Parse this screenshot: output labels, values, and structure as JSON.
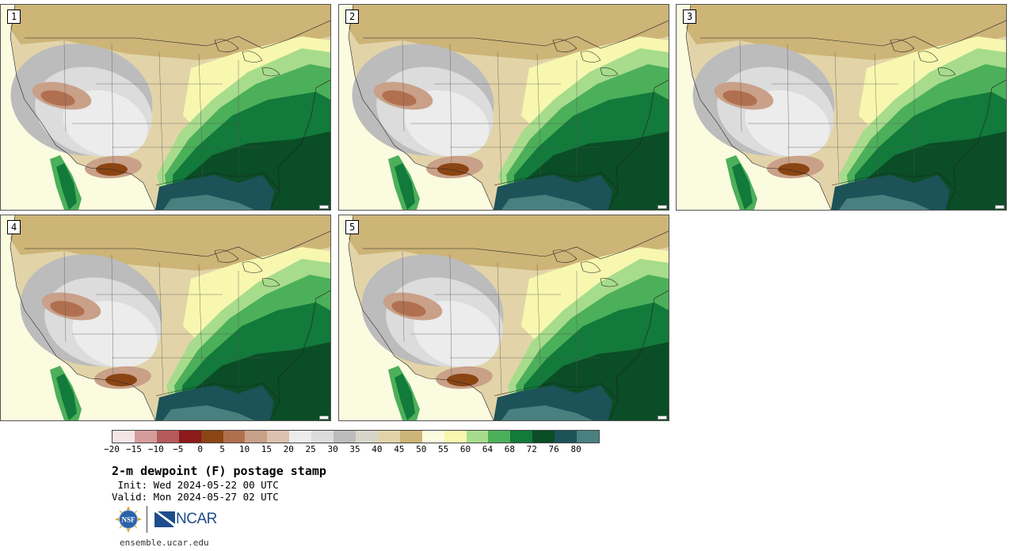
{
  "panels": [
    {
      "label": "1",
      "variant": 0
    },
    {
      "label": "2",
      "variant": 1
    },
    {
      "label": "3",
      "variant": 2
    },
    {
      "label": "4",
      "variant": 3
    },
    {
      "label": "5",
      "variant": 4
    }
  ],
  "colorbar": {
    "colors": [
      "#f4e6e6",
      "#d59c9c",
      "#b55a5a",
      "#8c1a1a",
      "#8b4513",
      "#b07050",
      "#c9a088",
      "#dcc1b0",
      "#ececec",
      "#dcdcdc",
      "#bcbcbc",
      "#d8d6c8",
      "#e2d4a8",
      "#cdb477",
      "#fbfbe0",
      "#f7f7b0",
      "#a7dc8c",
      "#4caf5a",
      "#127a3a",
      "#0a4d26",
      "#1c5258",
      "#4a7f80"
    ],
    "tick_labels": [
      "-20",
      "-15",
      "-10",
      "-5",
      "0",
      "5",
      "10",
      "15",
      "20",
      "25",
      "30",
      "35",
      "40",
      "45",
      "50",
      "55",
      "60",
      "64",
      "68",
      "72",
      "76",
      "80"
    ]
  },
  "title": "2-m dewpoint (F) postage stamp",
  "init": " Init: Wed 2024-05-22 00 UTC",
  "valid": "Valid: Mon 2024-05-27 02 UTC",
  "logos": {
    "nsf_text": "NSF",
    "ncar_text": "NCAR"
  },
  "site": "ensemble.ucar.edu"
}
